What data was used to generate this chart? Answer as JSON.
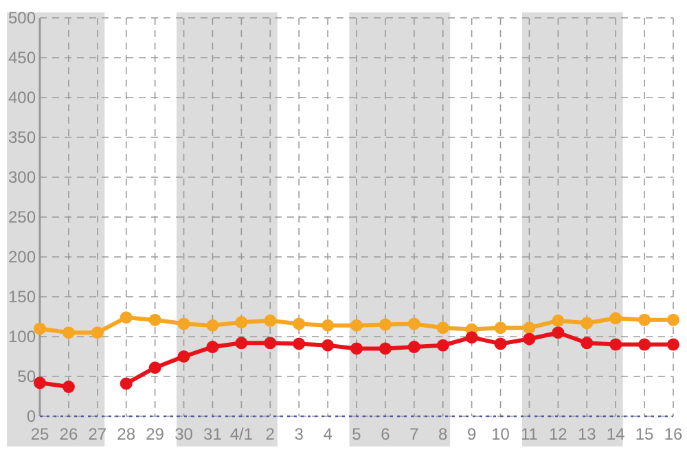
{
  "chart_data": {
    "type": "line",
    "categories": [
      "25",
      "26",
      "27",
      "28",
      "29",
      "30",
      "31",
      "4/1",
      "2",
      "3",
      "4",
      "5",
      "6",
      "7",
      "8",
      "9",
      "10",
      "11",
      "12",
      "13",
      "14",
      "15",
      "16"
    ],
    "series": [
      {
        "color": "#f5a623",
        "values": [
          110,
          105,
          105,
          124,
          121,
          116,
          114,
          118,
          120,
          116,
          114,
          114,
          115,
          116,
          111,
          109,
          111,
          111,
          120,
          117,
          123,
          121,
          121
        ]
      },
      {
        "color": "#e8121a",
        "values": [
          42,
          37,
          null,
          41,
          61,
          75,
          87,
          92,
          92,
          91,
          89,
          85,
          85,
          87,
          89,
          99,
          91,
          97,
          105,
          92,
          90,
          90,
          90
        ]
      }
    ],
    "ylim": [
      0,
      500
    ],
    "yticks": [
      0,
      50,
      100,
      150,
      200,
      250,
      300,
      350,
      400,
      450,
      500
    ],
    "grid": true,
    "marker": "circle",
    "line_style": "solid",
    "bands": [
      {
        "axis": "x",
        "from": "25",
        "to": "27",
        "color": "#dcdcdc"
      },
      {
        "axis": "x",
        "from": "30",
        "to": "2",
        "color": "#dcdcdc"
      },
      {
        "axis": "x",
        "from": "5",
        "to": "8",
        "color": "#dcdcdc"
      },
      {
        "axis": "x",
        "from": "11",
        "to": "14",
        "color": "#dcdcdc"
      }
    ],
    "ref_lines": [
      {
        "axis": "y",
        "value": 0,
        "color": "#5555aa",
        "line_style": "dotted"
      }
    ]
  }
}
